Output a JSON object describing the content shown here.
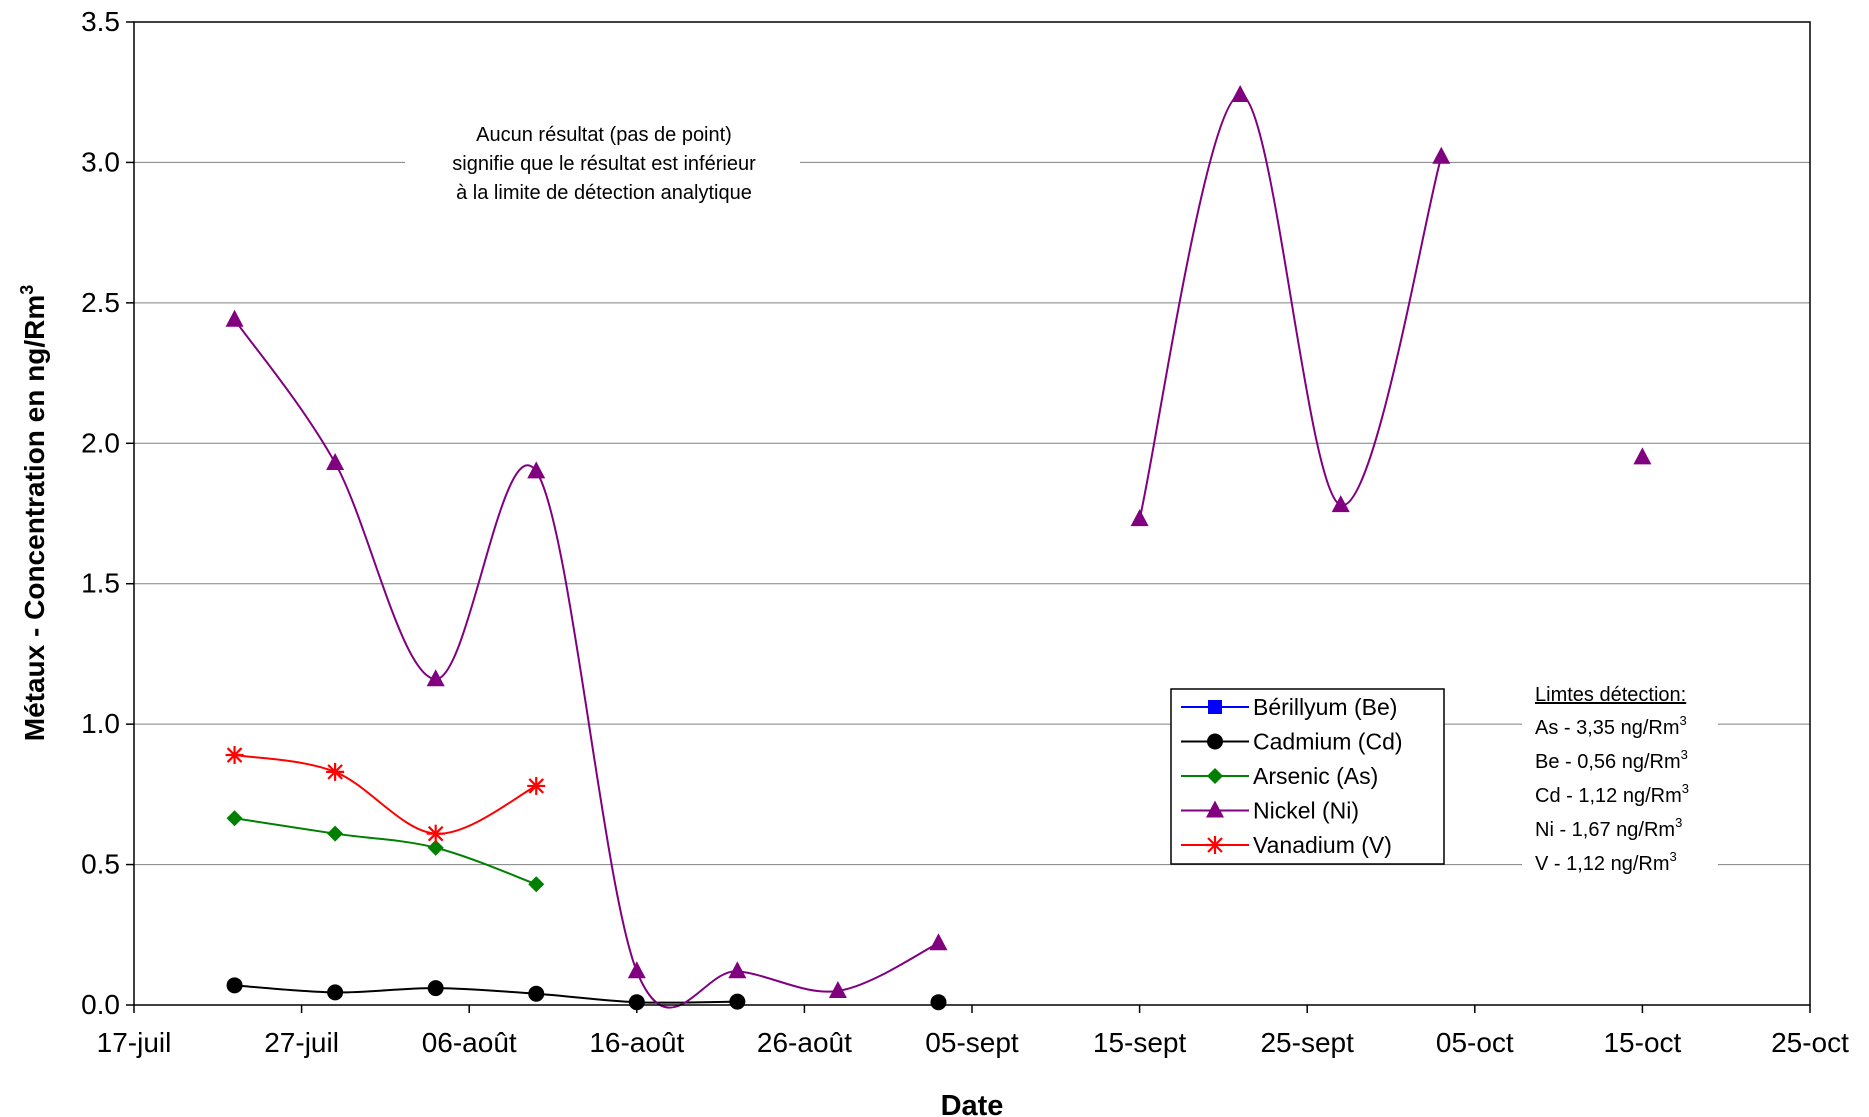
{
  "chart_data": {
    "type": "line",
    "title": "",
    "xlabel": "Date",
    "ylabel": "Métaux - Concentration en ng/Rm",
    "ylabel_superscript": "3",
    "ylim": [
      0,
      3.5
    ],
    "yticks": [
      "0.0",
      "0.5",
      "1.0",
      "1.5",
      "2.0",
      "2.5",
      "3.0",
      "3.5"
    ],
    "xlim": [
      "2008-07-17",
      "2008-10-25"
    ],
    "xticks": [
      {
        "date": "2008-07-17",
        "label": "17-juil"
      },
      {
        "date": "2008-07-27",
        "label": "27-juil"
      },
      {
        "date": "2008-08-06",
        "label": "06-août"
      },
      {
        "date": "2008-08-16",
        "label": "16-août"
      },
      {
        "date": "2008-08-26",
        "label": "26-août"
      },
      {
        "date": "2008-09-05",
        "label": "05-sept"
      },
      {
        "date": "2008-09-15",
        "label": "15-sept"
      },
      {
        "date": "2008-09-25",
        "label": "25-sept"
      },
      {
        "date": "2008-10-05",
        "label": "05-oct"
      },
      {
        "date": "2008-10-15",
        "label": "15-oct"
      },
      {
        "date": "2008-10-25",
        "label": "25-oct"
      }
    ],
    "grid": "horizontal",
    "series": [
      {
        "name": "Bérillyum (Be)",
        "color": "#0000ff",
        "marker": "square",
        "segments": []
      },
      {
        "name": "Cadmium (Cd)",
        "color": "#000000",
        "marker": "circle",
        "segments": [
          [
            [
              "2008-07-23",
              0.07
            ],
            [
              "2008-07-29",
              0.045
            ],
            [
              "2008-08-04",
              0.06
            ],
            [
              "2008-08-10",
              0.04
            ],
            [
              "2008-08-16",
              0.01
            ],
            [
              "2008-08-22",
              0.012
            ]
          ],
          [
            [
              "2008-09-03",
              0.01
            ]
          ]
        ]
      },
      {
        "name": "Arsenic (As)",
        "color": "#008000",
        "marker": "diamond",
        "segments": [
          [
            [
              "2008-07-23",
              0.665
            ],
            [
              "2008-07-29",
              0.61
            ],
            [
              "2008-08-04",
              0.56
            ],
            [
              "2008-08-10",
              0.43
            ]
          ]
        ]
      },
      {
        "name": "Nickel (Ni)",
        "color": "#800080",
        "marker": "triangle",
        "segments": [
          [
            [
              "2008-07-23",
              2.44
            ],
            [
              "2008-07-29",
              1.93
            ],
            [
              "2008-08-04",
              1.16
            ],
            [
              "2008-08-10",
              1.9
            ],
            [
              "2008-08-16",
              0.12
            ],
            [
              "2008-08-22",
              0.12
            ],
            [
              "2008-08-28",
              0.05
            ],
            [
              "2008-09-03",
              0.22
            ]
          ],
          [
            [
              "2008-09-15",
              1.73
            ],
            [
              "2008-09-21",
              3.24
            ],
            [
              "2008-09-27",
              1.78
            ],
            [
              "2008-10-03",
              3.02
            ]
          ],
          [
            [
              "2008-10-15",
              1.95
            ]
          ]
        ]
      },
      {
        "name": "Vanadium (V)",
        "color": "#ff0000",
        "marker": "star",
        "segments": [
          [
            [
              "2008-07-23",
              0.89
            ],
            [
              "2008-07-29",
              0.83
            ],
            [
              "2008-08-04",
              0.61
            ],
            [
              "2008-08-10",
              0.78
            ]
          ]
        ]
      }
    ],
    "legend_position": "center-right",
    "annotations": [
      {
        "lines": [
          "Aucun résultat (pas de point)",
          "signifie que le résultat est inférieur",
          "à la limite de détection analytique"
        ]
      }
    ],
    "detection_limits": {
      "title": "Limtes détection:",
      "items": [
        {
          "text": "As - 3,35 ng/Rm",
          "sup": "3"
        },
        {
          "text": "Be - 0,56 ng/Rm",
          "sup": "3"
        },
        {
          "text": "Cd - 1,12 ng/Rm",
          "sup": "3"
        },
        {
          "text": "Ni - 1,67 ng/Rm",
          "sup": "3"
        },
        {
          "text": "V - 1,12 ng/Rm",
          "sup": "3"
        }
      ]
    }
  }
}
